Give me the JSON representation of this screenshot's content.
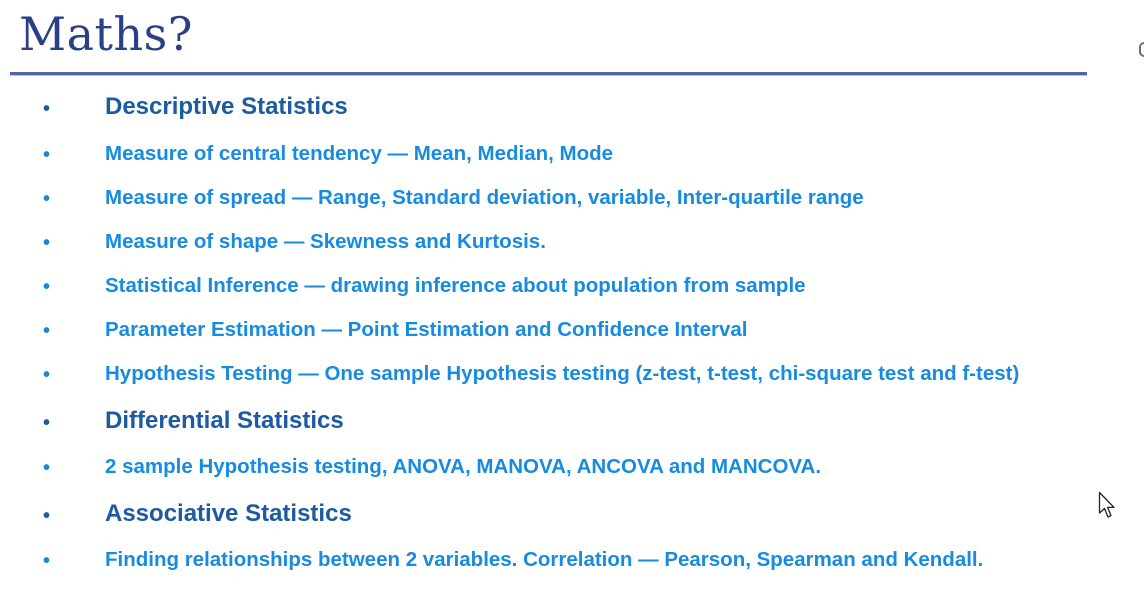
{
  "slide": {
    "title": "Maths?",
    "bullet_glyph": "•",
    "items": [
      {
        "level": "heading",
        "text": "Descriptive Statistics"
      },
      {
        "level": "sub",
        "text": "Measure of central tendency — Mean, Median, Mode"
      },
      {
        "level": "sub",
        "text": "Measure of spread — Range, Standard deviation, variable, Inter-quartile range"
      },
      {
        "level": "sub",
        "text": "Measure of shape — Skewness and Kurtosis."
      },
      {
        "level": "sub",
        "text": "Statistical Inference — drawing inference about population from sample"
      },
      {
        "level": "sub",
        "text": "Parameter Estimation — Point Estimation and Confidence Interval"
      },
      {
        "level": "sub",
        "text": "Hypothesis Testing — One sample Hypothesis testing (z-test, t-test, chi-square test and f-test)"
      },
      {
        "level": "heading",
        "text": "Differential Statistics"
      },
      {
        "level": "sub",
        "text": "2 sample Hypothesis testing, ANOVA, MANOVA, ANCOVA and MANCOVA."
      },
      {
        "level": "heading",
        "text": "Associative Statistics"
      },
      {
        "level": "sub",
        "text": "Finding relationships between 2 variables. Correlation — Pearson, Spearman and Kendall."
      }
    ]
  },
  "colors": {
    "title": "#2b3f86",
    "heading": "#1c5aa2",
    "sub": "#168be0",
    "rule": "#5363a6"
  },
  "icons": {
    "cursor": "mouse-pointer-icon"
  }
}
